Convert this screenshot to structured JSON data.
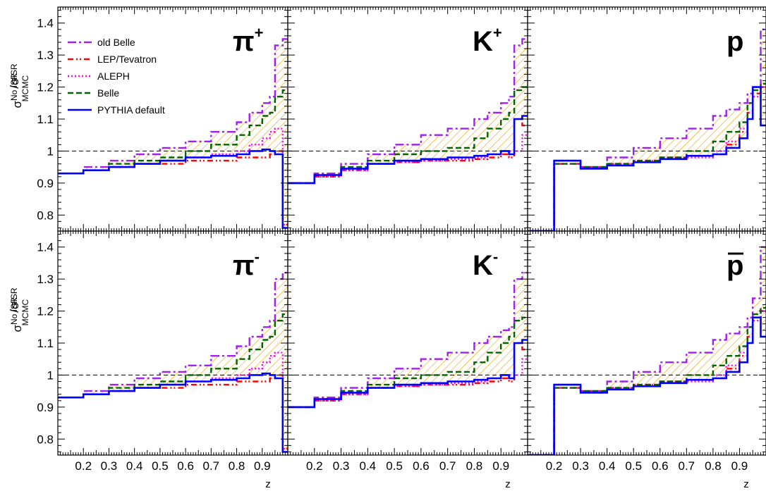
{
  "chart_data": {
    "type": "line",
    "layout": "2 rows x 3 columns, shared axes",
    "xlabel": "z",
    "ylabel": "σ_MC^{No ISR}/σ_MC^{ISR}",
    "ylabel_parts": {
      "main1": "σ",
      "sup1": "No ISR",
      "sub1": "MC",
      "main2": "/σ",
      "sup2": "ISR",
      "sub2": "MC"
    },
    "xlim": [
      0.1,
      1.0
    ],
    "ylim": [
      0.75,
      1.45
    ],
    "x_ticks": [
      0.2,
      0.3,
      0.4,
      0.5,
      0.6,
      0.7,
      0.8,
      0.9
    ],
    "x_tick_labels": [
      "0.2",
      "0.3",
      "0.4",
      "0.5",
      "0.6",
      "0.7",
      "0.8",
      "0.9"
    ],
    "y_ticks": [
      0.8,
      0.9,
      1.0,
      1.1,
      1.2,
      1.3,
      1.4
    ],
    "y_tick_labels": [
      "0.8",
      "0.9",
      "1",
      "1.1",
      "1.2",
      "1.3",
      "1.4"
    ],
    "reference_line": 1.0,
    "band": "hatched envelope between the old Belle and PYTHIA default curves",
    "legend": {
      "position": "top-left of first panel",
      "entries": [
        "old Belle",
        "LEP/Tevatron",
        "ALEPH",
        "Belle",
        "PYTHIA default"
      ]
    },
    "series_styles": [
      {
        "name": "old Belle",
        "color": "#a020f0",
        "dash": "dash-dot",
        "key": "oldBelle"
      },
      {
        "name": "LEP/Tevatron",
        "color": "#ff0000",
        "dash": "dash-dot-dot",
        "key": "lep"
      },
      {
        "name": "ALEPH",
        "color": "#ff00ff",
        "dash": "dotted",
        "key": "aleph"
      },
      {
        "name": "Belle",
        "color": "#006400",
        "dash": "dashed",
        "key": "belle"
      },
      {
        "name": "PYTHIA default",
        "color": "#0000ff",
        "dash": "solid",
        "key": "pythia"
      }
    ],
    "hatch_color": "#f0a000",
    "panels": [
      {
        "label": "π",
        "label_sup": "+",
        "x_points": [
          0.1,
          0.2,
          0.3,
          0.4,
          0.5,
          0.6,
          0.7,
          0.8,
          0.85,
          0.9,
          0.93,
          0.95,
          0.98
        ],
        "oldBelle": [
          0.93,
          0.95,
          0.97,
          0.99,
          1.01,
          1.03,
          1.06,
          1.09,
          1.12,
          1.15,
          1.17,
          1.33,
          1.35
        ],
        "lep": [
          0.93,
          0.94,
          0.95,
          0.96,
          0.96,
          0.97,
          0.97,
          0.98,
          0.98,
          0.98,
          0.99,
          1.0,
          0.77
        ],
        "aleph": [
          0.93,
          0.94,
          0.95,
          0.96,
          0.97,
          0.98,
          0.99,
          1.0,
          1.02,
          1.04,
          1.06,
          1.07,
          0.77
        ],
        "belle": [
          0.93,
          0.94,
          0.96,
          0.97,
          0.98,
          1.0,
          1.02,
          1.05,
          1.08,
          1.11,
          1.12,
          1.17,
          1.19
        ],
        "pythia": [
          0.93,
          0.94,
          0.95,
          0.96,
          0.97,
          0.98,
          0.985,
          0.99,
          1.0,
          1.005,
          1.0,
          0.99,
          0.76
        ]
      },
      {
        "label": "K",
        "label_sup": "+",
        "x_points": [
          0.1,
          0.2,
          0.3,
          0.4,
          0.5,
          0.6,
          0.7,
          0.8,
          0.85,
          0.9,
          0.93,
          0.95,
          0.98
        ],
        "oldBelle": [
          0.9,
          0.93,
          0.96,
          0.99,
          1.02,
          1.05,
          1.07,
          1.1,
          1.12,
          1.15,
          1.17,
          1.33,
          1.35
        ],
        "lep": [
          0.9,
          0.92,
          0.94,
          0.96,
          0.965,
          0.97,
          0.97,
          0.975,
          0.98,
          0.99,
          0.98,
          1.1,
          1.08
        ],
        "aleph": [
          0.9,
          0.92,
          0.94,
          0.96,
          0.965,
          0.97,
          0.975,
          0.98,
          0.99,
          1.0,
          1.0,
          1.0,
          1.05
        ],
        "belle": [
          0.9,
          0.925,
          0.95,
          0.97,
          0.99,
          1.0,
          1.01,
          1.04,
          1.07,
          1.1,
          1.12,
          1.19,
          1.2
        ],
        "pythia": [
          0.9,
          0.925,
          0.945,
          0.96,
          0.97,
          0.975,
          0.98,
          0.985,
          0.99,
          1.0,
          0.99,
          1.1,
          1.11
        ]
      },
      {
        "label": "p",
        "label_sup": "",
        "x_points": [
          0.1,
          0.17,
          0.2,
          0.3,
          0.4,
          0.5,
          0.6,
          0.7,
          0.8,
          0.85,
          0.9,
          0.93,
          0.95,
          0.98
        ],
        "oldBelle": [
          0.75,
          0.75,
          0.97,
          0.95,
          0.98,
          1.01,
          1.04,
          1.07,
          1.11,
          1.13,
          1.15,
          1.18,
          1.2,
          1.38
        ],
        "lep": [
          0.75,
          0.75,
          0.96,
          0.95,
          0.96,
          0.97,
          0.98,
          0.985,
          0.99,
          1.02,
          1.06,
          1.12,
          1.18,
          1.2
        ],
        "aleph": [
          0.75,
          0.75,
          0.96,
          0.95,
          0.96,
          0.97,
          0.975,
          0.98,
          1.0,
          1.03,
          1.07,
          1.12,
          1.17,
          1.2
        ],
        "belle": [
          0.75,
          0.75,
          0.96,
          0.95,
          0.96,
          0.97,
          0.98,
          1.0,
          1.03,
          1.06,
          1.09,
          1.15,
          1.19,
          1.21
        ],
        "pythia": [
          0.75,
          0.75,
          0.97,
          0.945,
          0.955,
          0.965,
          0.975,
          0.985,
          0.99,
          1.01,
          1.04,
          1.1,
          1.2,
          1.08
        ]
      },
      {
        "label": "π",
        "label_sup": "-",
        "x_points": [
          0.1,
          0.2,
          0.3,
          0.4,
          0.5,
          0.6,
          0.7,
          0.8,
          0.85,
          0.9,
          0.93,
          0.95,
          0.98
        ],
        "oldBelle": [
          0.93,
          0.95,
          0.97,
          0.99,
          1.01,
          1.03,
          1.06,
          1.09,
          1.12,
          1.15,
          1.17,
          1.3,
          1.32
        ],
        "lep": [
          0.93,
          0.94,
          0.95,
          0.96,
          0.96,
          0.97,
          0.97,
          0.98,
          0.98,
          0.98,
          0.99,
          1.0,
          0.77
        ],
        "aleph": [
          0.93,
          0.94,
          0.95,
          0.96,
          0.97,
          0.98,
          0.99,
          1.0,
          1.02,
          1.04,
          1.06,
          1.07,
          0.77
        ],
        "belle": [
          0.93,
          0.94,
          0.96,
          0.97,
          0.98,
          1.0,
          1.02,
          1.05,
          1.08,
          1.11,
          1.12,
          1.17,
          1.19
        ],
        "pythia": [
          0.93,
          0.94,
          0.95,
          0.96,
          0.97,
          0.98,
          0.985,
          0.99,
          1.0,
          1.005,
          1.0,
          0.99,
          0.76
        ]
      },
      {
        "label": "K",
        "label_sup": "-",
        "x_points": [
          0.1,
          0.2,
          0.3,
          0.4,
          0.5,
          0.6,
          0.7,
          0.8,
          0.85,
          0.9,
          0.93,
          0.95,
          0.98
        ],
        "oldBelle": [
          0.9,
          0.93,
          0.96,
          0.99,
          1.02,
          1.05,
          1.07,
          1.1,
          1.12,
          1.14,
          1.15,
          1.3,
          1.32
        ],
        "lep": [
          0.9,
          0.92,
          0.94,
          0.96,
          0.965,
          0.97,
          0.97,
          0.975,
          0.98,
          0.99,
          0.98,
          1.1,
          1.08
        ],
        "aleph": [
          0.9,
          0.92,
          0.94,
          0.96,
          0.965,
          0.97,
          0.975,
          0.98,
          0.99,
          1.0,
          1.0,
          1.0,
          1.05
        ],
        "belle": [
          0.9,
          0.925,
          0.95,
          0.97,
          0.99,
          1.0,
          1.01,
          1.04,
          1.07,
          1.1,
          1.12,
          1.17,
          1.18
        ],
        "pythia": [
          0.9,
          0.925,
          0.945,
          0.96,
          0.97,
          0.975,
          0.98,
          0.985,
          0.99,
          1.0,
          0.99,
          1.1,
          1.11
        ]
      },
      {
        "label": "p",
        "label_sup": "",
        "label_overbar": true,
        "x_points": [
          0.1,
          0.17,
          0.2,
          0.3,
          0.4,
          0.5,
          0.6,
          0.7,
          0.8,
          0.85,
          0.9,
          0.93,
          0.95,
          0.98
        ],
        "oldBelle": [
          0.75,
          0.75,
          0.97,
          0.95,
          0.98,
          1.01,
          1.04,
          1.07,
          1.11,
          1.13,
          1.15,
          1.18,
          1.24,
          1.4
        ],
        "lep": [
          0.75,
          0.75,
          0.96,
          0.95,
          0.96,
          0.97,
          0.98,
          0.985,
          0.99,
          1.02,
          1.06,
          1.12,
          1.18,
          1.2
        ],
        "aleph": [
          0.75,
          0.75,
          0.96,
          0.95,
          0.96,
          0.97,
          0.975,
          0.98,
          1.0,
          1.03,
          1.07,
          1.12,
          1.17,
          1.2
        ],
        "belle": [
          0.75,
          0.75,
          0.96,
          0.95,
          0.96,
          0.97,
          0.98,
          1.0,
          1.03,
          1.06,
          1.09,
          1.15,
          1.19,
          1.21
        ],
        "pythia": [
          0.75,
          0.75,
          0.97,
          0.945,
          0.955,
          0.965,
          0.975,
          0.985,
          0.99,
          1.01,
          1.04,
          1.1,
          1.18,
          1.12
        ]
      }
    ]
  }
}
